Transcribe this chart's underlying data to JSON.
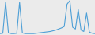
{
  "values": [
    2,
    3,
    90,
    5,
    2,
    2,
    3,
    90,
    4,
    2,
    2,
    2,
    2,
    3,
    4,
    5,
    6,
    7,
    8,
    10,
    12,
    15,
    18,
    22,
    85,
    95,
    20,
    15,
    70,
    12,
    8,
    60,
    6,
    3,
    2
  ],
  "line_color": "#4d9fd6",
  "bg_color": "#ebebeb",
  "linewidth": 0.8
}
